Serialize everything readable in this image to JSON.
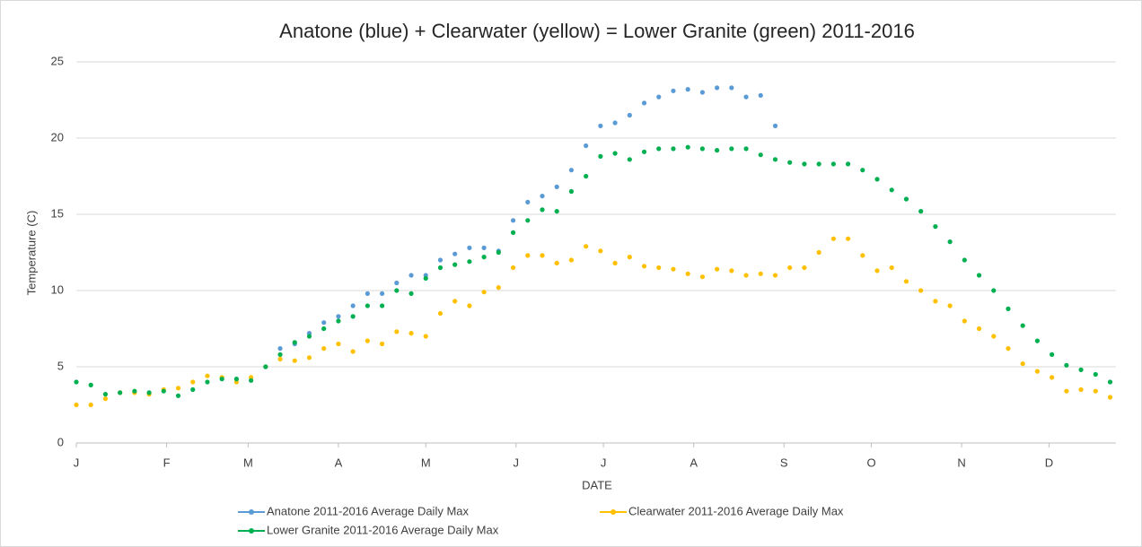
{
  "chart_data": {
    "type": "scatter",
    "title": "Anatone (blue) + Clearwater (yellow) = Lower Granite (green) 2011-2016",
    "xlabel": "DATE",
    "ylabel": "Temperature (C)",
    "x": [
      1,
      6,
      11,
      16,
      21,
      26,
      31,
      36,
      41,
      46,
      51,
      56,
      61,
      66,
      71,
      76,
      81,
      86,
      91,
      96,
      101,
      106,
      111,
      116,
      121,
      126,
      131,
      136,
      141,
      146,
      151,
      156,
      161,
      166,
      171,
      176,
      181,
      186,
      191,
      196,
      201,
      206,
      211,
      216,
      221,
      226,
      231,
      236,
      241,
      246,
      251,
      256,
      261,
      266,
      271,
      276,
      281,
      286,
      291,
      296,
      301,
      306,
      311,
      316,
      321,
      326,
      331,
      336,
      341,
      346,
      351,
      356
    ],
    "xlim": [
      1,
      358
    ],
    "xticks": [
      {
        "value": 1,
        "label": "J"
      },
      {
        "value": 32,
        "label": "F"
      },
      {
        "value": 60,
        "label": "M"
      },
      {
        "value": 91,
        "label": "A"
      },
      {
        "value": 121,
        "label": "M"
      },
      {
        "value": 152,
        "label": "J"
      },
      {
        "value": 182,
        "label": "J"
      },
      {
        "value": 213,
        "label": "A"
      },
      {
        "value": 244,
        "label": "S"
      },
      {
        "value": 274,
        "label": "O"
      },
      {
        "value": 305,
        "label": "N"
      },
      {
        "value": 335,
        "label": "D"
      }
    ],
    "ylim": [
      0,
      25
    ],
    "yticks": [
      0,
      5,
      10,
      15,
      20,
      25
    ],
    "grid": true,
    "legend": "bottom",
    "series": [
      {
        "name": "Anatone 2011-2016 Average Daily Max",
        "color": "#5b9bd5",
        "values": [
          null,
          null,
          null,
          null,
          null,
          null,
          null,
          null,
          null,
          null,
          null,
          null,
          null,
          5.0,
          6.2,
          6.5,
          7.2,
          7.9,
          8.3,
          9.0,
          9.8,
          9.8,
          10.5,
          11.0,
          11.0,
          12.0,
          12.4,
          12.8,
          12.8,
          12.6,
          14.6,
          15.8,
          16.2,
          16.8,
          17.9,
          19.5,
          20.8,
          21.0,
          21.5,
          22.3,
          22.7,
          23.1,
          23.2,
          23.0,
          23.3,
          23.3,
          22.7,
          22.8,
          20.8,
          null,
          null,
          null,
          null,
          null,
          null,
          null,
          null,
          null,
          null,
          null,
          null,
          null,
          null,
          null,
          null,
          null,
          null,
          null,
          null,
          null,
          null,
          null
        ]
      },
      {
        "name": "Clearwater 2011-2016 Average Daily Max",
        "color": "#ffc000",
        "values": [
          2.5,
          2.5,
          2.9,
          3.3,
          3.3,
          3.2,
          3.5,
          3.6,
          4.0,
          4.4,
          4.3,
          4.0,
          4.3,
          5.0,
          5.5,
          5.4,
          5.6,
          6.2,
          6.5,
          6.0,
          6.7,
          6.5,
          7.3,
          7.2,
          7.0,
          8.5,
          9.3,
          9.0,
          9.9,
          10.2,
          11.5,
          12.3,
          12.3,
          11.8,
          12.0,
          12.9,
          12.6,
          11.8,
          12.2,
          11.6,
          11.5,
          11.4,
          11.1,
          10.9,
          11.4,
          11.3,
          11.0,
          11.1,
          11.0,
          11.5,
          11.5,
          12.5,
          13.4,
          13.4,
          12.3,
          11.3,
          11.5,
          10.6,
          10.0,
          9.3,
          9.0,
          8.0,
          7.5,
          7.0,
          6.2,
          5.2,
          4.7,
          4.3,
          3.4,
          3.5,
          3.4,
          3.0
        ]
      },
      {
        "name": "Lower Granite 2011-2016 Average Daily Max",
        "color": "#00b050",
        "values": [
          4.0,
          3.8,
          3.2,
          3.3,
          3.4,
          3.3,
          3.4,
          3.1,
          3.5,
          4.0,
          4.2,
          4.2,
          4.1,
          5.0,
          5.8,
          6.6,
          7.0,
          7.5,
          8.0,
          8.3,
          9.0,
          9.0,
          10.0,
          9.8,
          10.8,
          11.5,
          11.7,
          11.9,
          12.2,
          12.5,
          13.8,
          14.6,
          15.3,
          15.2,
          16.5,
          17.5,
          18.8,
          19.0,
          18.6,
          19.1,
          19.3,
          19.3,
          19.4,
          19.3,
          19.2,
          19.3,
          19.3,
          18.9,
          18.6,
          18.4,
          18.3,
          18.3,
          18.3,
          18.3,
          17.9,
          17.3,
          16.6,
          16.0,
          15.2,
          14.2,
          13.2,
          12.0,
          11.0,
          10.0,
          8.8,
          7.7,
          6.7,
          5.8,
          5.1,
          4.8,
          4.5,
          4.0
        ]
      }
    ]
  }
}
